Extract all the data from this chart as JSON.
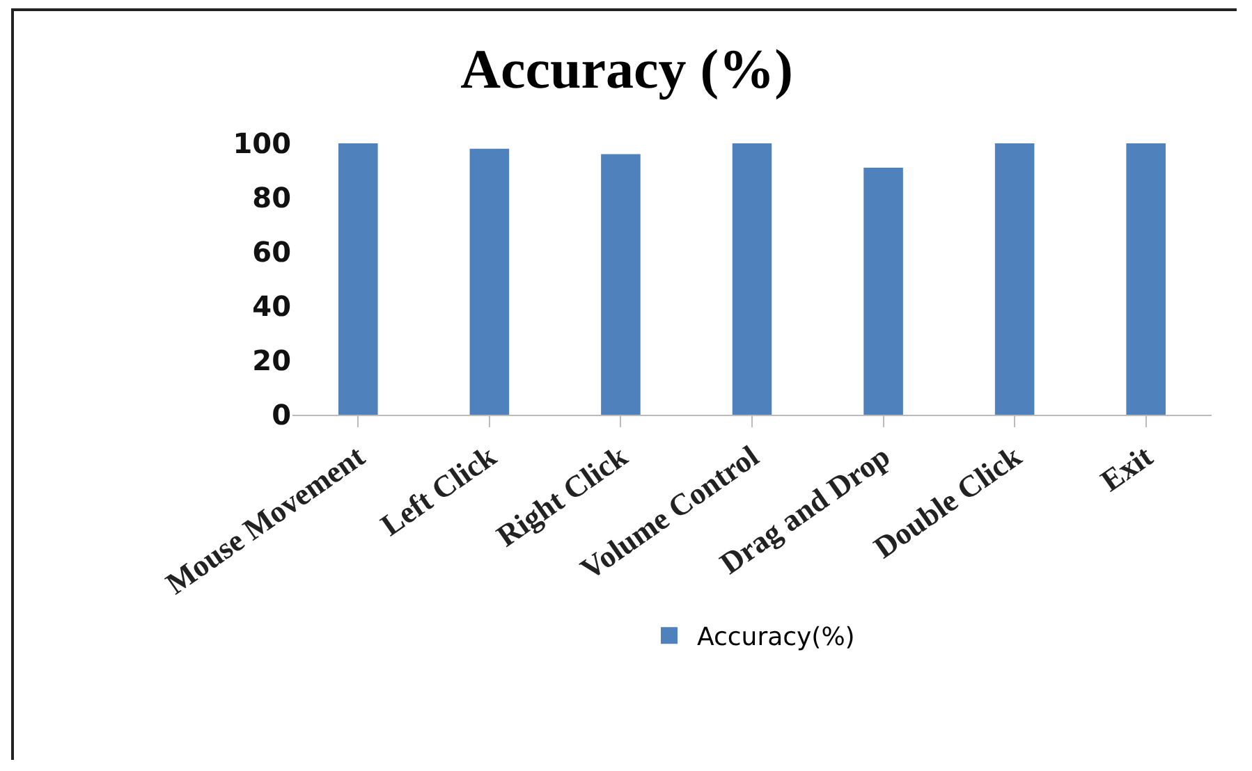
{
  "chart_data": {
    "type": "bar",
    "title": "Accuracy (%)",
    "categories": [
      "Mouse Movement",
      "Left Click",
      "Right Click",
      "Volume Control",
      "Drag and Drop",
      "Double Click",
      "Exit"
    ],
    "series": [
      {
        "name": "Accuracy(%)",
        "color": "#4f81bd",
        "values": [
          100,
          98,
          96,
          100,
          91,
          100,
          100
        ]
      }
    ],
    "ylim": [
      0,
      100
    ],
    "yticks": [
      0,
      20,
      40,
      60,
      80,
      100
    ],
    "grid": false,
    "legend": "bottom"
  }
}
